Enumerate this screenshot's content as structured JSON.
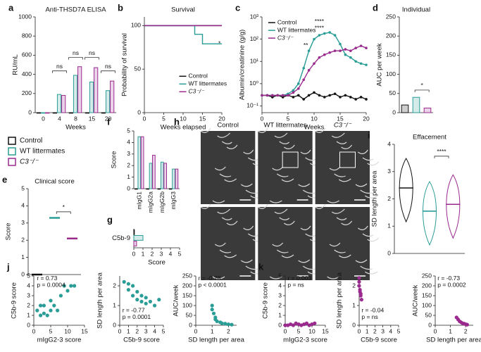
{
  "legend": {
    "entries": [
      {
        "name": "Control",
        "color": "#111111"
      },
      {
        "name": "WT littermates",
        "color": "#2a9d96"
      },
      {
        "name": "C3⁻/⁻",
        "color": "#9b2a8f"
      }
    ]
  },
  "chart_data": [
    {
      "label": "a",
      "type": "bar",
      "title": "Anti-THSD7A ELISA",
      "ylabel": "RU/mL",
      "xlabel": "Weeks",
      "categories": [
        "0",
        "4",
        "8",
        "15",
        "20"
      ],
      "series": [
        {
          "color": "#111111",
          "values": [
            0,
            0,
            0,
            0,
            0
          ]
        },
        {
          "color": "#2a9d96",
          "values": [
            0,
            190,
            390,
            320,
            230
          ]
        },
        {
          "color": "#9b2a8f",
          "values": [
            0,
            180,
            480,
            470,
            330
          ]
        }
      ],
      "ylim": [
        0,
        1000
      ],
      "yticks": [
        0,
        200,
        400,
        600,
        800,
        1000
      ],
      "annotations": [
        "ns",
        "ns",
        "ns",
        "ns"
      ]
    },
    {
      "label": "b",
      "type": "line",
      "title": "Survival",
      "ylabel": "Probability of survival",
      "xlabel": "Weeks elapsed",
      "series": [
        {
          "name": "Control",
          "color": "#111111",
          "x": [
            0,
            20
          ],
          "values": [
            100,
            100
          ]
        },
        {
          "name": "WT littermates",
          "color": "#2a9d96",
          "x": [
            0,
            13,
            13,
            15,
            15,
            20
          ],
          "values": [
            100,
            100,
            90,
            90,
            79,
            79
          ]
        },
        {
          "name": "C3⁻/⁻",
          "color": "#9b2a8f",
          "x": [
            0,
            20
          ],
          "values": [
            100,
            100
          ]
        }
      ],
      "xlim": [
        0,
        20
      ],
      "xticks": [
        0,
        5,
        10,
        15,
        20
      ],
      "ylim": [
        0,
        110
      ],
      "yticks": [
        0,
        50,
        100
      ],
      "annotations": [
        "*"
      ]
    },
    {
      "label": "c",
      "type": "line",
      "ylabel": "Albumin/creatinine (g/g)",
      "xlabel": "Weeks",
      "log_y": true,
      "markers": true,
      "series": [
        {
          "name": "Control",
          "color": "#111111",
          "x": [
            0,
            1,
            2,
            3,
            4,
            5,
            6,
            7,
            8,
            9,
            10,
            11,
            12,
            13,
            14,
            15,
            16,
            17,
            18,
            19,
            20
          ],
          "values": [
            0.3,
            0.3,
            0.25,
            0.3,
            0.25,
            0.3,
            0.25,
            0.3,
            0.2,
            0.3,
            0.4,
            0.3,
            0.25,
            0.3,
            0.35,
            0.25,
            0.3,
            0.25,
            0.2,
            0.25,
            0.2
          ]
        },
        {
          "name": "WT littermates",
          "color": "#2a9d96",
          "x": [
            0,
            1,
            2,
            3,
            4,
            5,
            6,
            7,
            8,
            9,
            10,
            11,
            12,
            13,
            14,
            15,
            16,
            17,
            18,
            19,
            20
          ],
          "values": [
            0.3,
            0.3,
            0.3,
            0.3,
            0.3,
            0.35,
            0.5,
            1,
            5,
            30,
            100,
            150,
            180,
            200,
            150,
            60,
            20,
            15,
            10,
            8,
            7
          ]
        },
        {
          "name": "C3⁻/⁻",
          "color": "#9b2a8f",
          "x": [
            0,
            1,
            2,
            3,
            4,
            5,
            6,
            7,
            8,
            9,
            10,
            11,
            12,
            13,
            14,
            15,
            16,
            17,
            18,
            19,
            20
          ],
          "values": [
            0.3,
            0.3,
            0.3,
            0.3,
            0.3,
            0.3,
            0.4,
            0.6,
            1.5,
            4,
            8,
            15,
            20,
            25,
            30,
            30,
            35,
            30,
            40,
            50,
            40
          ]
        }
      ],
      "xlim": [
        0,
        20
      ],
      "xticks": [
        0,
        5,
        10,
        15,
        20
      ],
      "ylim": [
        0.05,
        1000
      ],
      "yticks": [
        {
          "value": 0.1,
          "label": "10⁻¹"
        },
        {
          "value": 1,
          "label": "10⁰"
        },
        {
          "value": 10,
          "label": "10¹"
        },
        {
          "value": 100,
          "label": "10²"
        },
        {
          "value": 1000,
          "label": "10³"
        }
      ],
      "annotations": [
        "****",
        "****",
        "**"
      ]
    },
    {
      "label": "d",
      "type": "bar",
      "title": "Individual",
      "ylabel": "AUC per week",
      "categories": [
        null,
        null,
        null
      ],
      "values": [
        20,
        40,
        12
      ],
      "colors": [
        "#111111",
        "#2a9d96",
        "#9b2a8f"
      ],
      "ylim": [
        0,
        250
      ],
      "yticks": [
        0,
        50,
        100,
        150,
        200,
        250
      ],
      "annotations": [
        "*"
      ]
    },
    {
      "label": "e",
      "type": "mean",
      "title": "Clinical score",
      "ylabel": "Score",
      "categories": [
        null,
        null,
        null
      ],
      "values": [
        0,
        3.3,
        2.1
      ],
      "colors": [
        "#111111",
        "#2a9d96",
        "#9b2a8f"
      ],
      "ylim": [
        0,
        5
      ],
      "yticks": [
        0,
        1,
        2,
        3,
        4,
        5
      ],
      "annotations": [
        "*"
      ]
    },
    {
      "label": "f",
      "type": "bar",
      "ylabel": "Score",
      "categories": [
        "mIgG1",
        "mIgG2a",
        "mIgG2b",
        "mIgG3"
      ],
      "rotate": true,
      "series": [
        {
          "color": "#111111",
          "values": [
            0,
            0,
            0,
            0
          ]
        },
        {
          "color": "#2a9d96",
          "values": [
            4.5,
            2.2,
            2.3,
            1.7
          ]
        },
        {
          "color": "#9b2a8f",
          "values": [
            4.5,
            2.9,
            2.2,
            1.7
          ]
        }
      ],
      "ylim": [
        0,
        5
      ],
      "yticks": [
        0,
        1,
        2,
        3,
        4,
        5
      ]
    },
    {
      "label": "g",
      "type": "hbar",
      "xlabel": "Score",
      "categories": [
        "C5b-9"
      ],
      "series": [
        {
          "color": "#111111",
          "values": [
            0
          ]
        },
        {
          "color": "#2a9d96",
          "values": [
            1.0
          ]
        },
        {
          "color": "#9b2a8f",
          "values": [
            0.3
          ]
        }
      ],
      "xlim": [
        0,
        5
      ],
      "xticks": [
        0,
        1,
        2,
        3,
        4,
        5
      ]
    },
    {
      "label": "h",
      "type": "image",
      "columns": [
        "Control",
        "WT littermates",
        "C3⁻/⁻"
      ]
    },
    {
      "label": "i",
      "type": "violin",
      "title": "Effacement",
      "ylabel": "SD length per area",
      "categories": [
        null,
        null,
        null
      ],
      "values": [
        2.4,
        1.55,
        1.8
      ],
      "colors": [
        "#111111",
        "#2a9d96",
        "#9b2a8f"
      ],
      "ylim": [
        0,
        4
      ],
      "yticks": [
        0,
        1,
        2,
        3,
        4
      ],
      "annotations": [
        "****"
      ]
    },
    {
      "label": "j",
      "type": "scatter",
      "xlabel": "mIgG2-3 score",
      "ylabel": "C5b-9 score",
      "color": "#2a9d96",
      "x": [
        1,
        2,
        2,
        3,
        3,
        4,
        5,
        5,
        6,
        7,
        8,
        9,
        10,
        11,
        12
      ],
      "values": [
        1.5,
        1,
        2,
        1.2,
        2,
        1,
        1.5,
        2.5,
        2,
        1.5,
        3,
        4,
        3.5,
        4,
        4
      ],
      "xlim": [
        0,
        15
      ],
      "xticks": [
        0,
        5,
        10,
        15
      ],
      "ylim": [
        0,
        5
      ],
      "yticks": [
        0,
        1,
        2,
        3,
        4,
        5
      ],
      "annotations": [
        "r = 0.73",
        "p = 0.0004"
      ]
    },
    {
      "type": "scatter",
      "xlabel": "C5b-9 score",
      "ylabel": "SD length per area",
      "color": "#2a9d96",
      "x": [
        0.5,
        1,
        1,
        1.5,
        1.5,
        2,
        2,
        2.5,
        2.5,
        3,
        3,
        3.5,
        4,
        4.5
      ],
      "values": [
        2.2,
        2.1,
        1.8,
        2,
        1.5,
        1.7,
        1.3,
        1.5,
        1.2,
        1.4,
        1.1,
        1.2,
        1,
        1.3
      ],
      "xlim": [
        0,
        5
      ],
      "xticks": [
        0,
        1,
        2,
        3,
        4,
        5
      ],
      "ylim": [
        0,
        2.5
      ],
      "yticks": [
        0,
        1,
        2
      ],
      "annotations": [
        "r = -0.77",
        "p = 0.0001"
      ]
    },
    {
      "type": "scatter",
      "xlabel": "SD length per area",
      "ylabel": "AUC/week",
      "color": "#2a9d96",
      "x": [
        1,
        1,
        1.1,
        1.2,
        1.2,
        1.3,
        1.5,
        1.6,
        1.8,
        2,
        2.2
      ],
      "values": [
        100,
        80,
        60,
        40,
        30,
        20,
        15,
        10,
        8,
        5,
        3
      ],
      "xlim": [
        0,
        2.5
      ],
      "xticks": [
        0,
        1,
        2
      ],
      "ylim": [
        0,
        250
      ],
      "yticks": [
        0,
        50,
        100,
        150,
        200,
        250
      ],
      "annotations": [
        "r = -0.78",
        "p < 0.0001"
      ]
    },
    {
      "label": "k",
      "type": "scatter",
      "xlabel": "mIgG2-3 score",
      "ylabel": "C5b-9 score",
      "color": "#9b2a8f",
      "x": [
        0,
        1,
        2,
        3,
        4,
        5,
        6,
        7,
        8,
        9,
        10,
        11
      ],
      "values": [
        0,
        0,
        0.1,
        0,
        0.2,
        0.1,
        0,
        0.1,
        0.2,
        0,
        0.1,
        0.2
      ],
      "xlim": [
        0,
        15
      ],
      "xticks": [
        0,
        5,
        10,
        15
      ],
      "ylim": [
        0,
        5
      ],
      "yticks": [
        0,
        1,
        2,
        3,
        4,
        5
      ],
      "annotations": [
        "r = 0.003",
        "p = ns"
      ]
    },
    {
      "type": "scatter",
      "xlabel": "C5b-9 score",
      "ylabel": "SD length per area",
      "color": "#9b2a8f",
      "x": [
        0,
        0,
        0,
        0.1,
        0.1,
        0.2,
        0.2,
        0.3
      ],
      "values": [
        2.4,
        2.2,
        2,
        1.8,
        1.7,
        1.6,
        1.5,
        1.3
      ],
      "xlim": [
        0,
        5
      ],
      "xticks": [
        0,
        1,
        2,
        3,
        4,
        5
      ],
      "ylim": [
        0,
        2.5
      ],
      "yticks": [
        0,
        1,
        2
      ],
      "annotations": [
        "r = -0.04",
        "p = ns"
      ]
    },
    {
      "type": "scatter",
      "xlabel": "SD length per area",
      "ylabel": "AUC/week",
      "color": "#9b2a8f",
      "x": [
        1.4,
        1.5,
        1.6,
        1.7,
        1.8,
        1.9,
        2,
        2.1
      ],
      "values": [
        40,
        30,
        20,
        15,
        10,
        8,
        5,
        3
      ],
      "xlim": [
        0,
        2.5
      ],
      "xticks": [
        0,
        1,
        2
      ],
      "ylim": [
        0,
        250
      ],
      "yticks": [
        0,
        50,
        100,
        150,
        200,
        250
      ],
      "annotations": [
        "r = -0.73",
        "p = 0.0002"
      ]
    }
  ]
}
